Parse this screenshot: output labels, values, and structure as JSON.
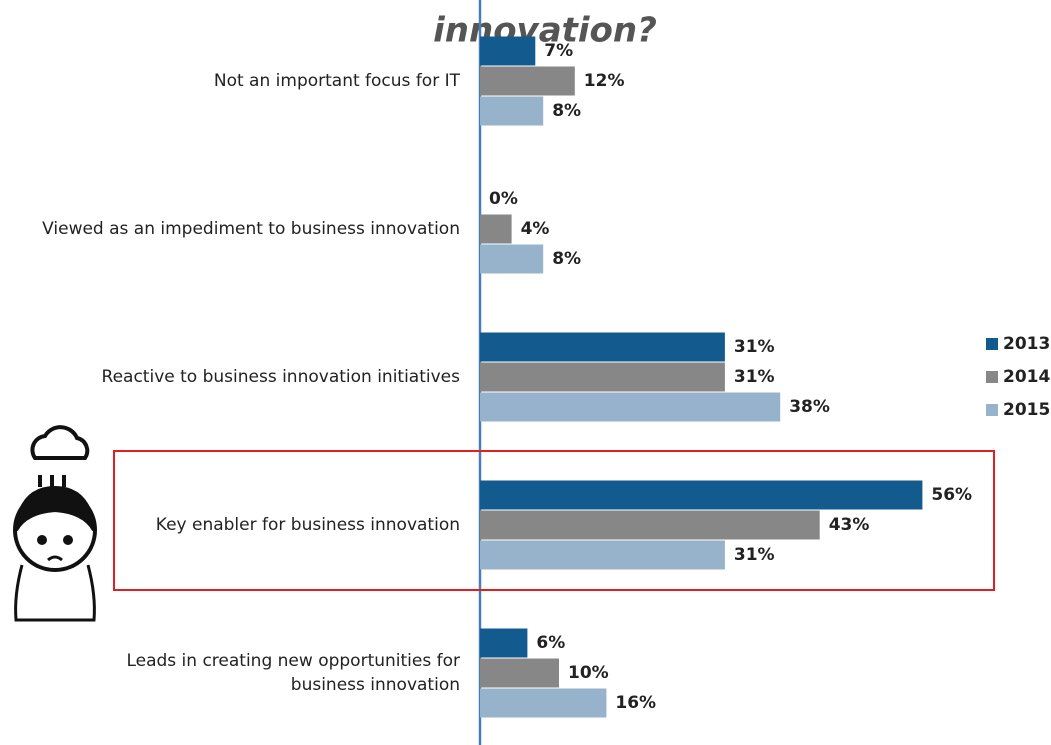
{
  "chart_data": {
    "type": "bar",
    "orientation": "horizontal",
    "title": "innovation?",
    "categories": [
      "Not an important focus for IT",
      "Viewed as an impediment to business innovation",
      "Reactive to business innovation initiatives",
      "Key enabler for business innovation",
      "Leads in creating new opportunities for business innovation"
    ],
    "series": [
      {
        "name": "2013",
        "color": "#135a8f",
        "values": [
          7,
          0,
          31,
          56,
          6
        ],
        "value_labels": [
          "7%",
          "0%",
          "31%",
          "56%",
          "6%"
        ]
      },
      {
        "name": "2014",
        "color": "#878787",
        "values": [
          12,
          4,
          31,
          43,
          10
        ],
        "value_labels": [
          "12%",
          "4%",
          "31%",
          "43%",
          "10%"
        ]
      },
      {
        "name": "2015",
        "color": "#97b3cc",
        "values": [
          8,
          8,
          38,
          31,
          16
        ],
        "value_labels": [
          "8%",
          "8%",
          "38%",
          "31%",
          "16%"
        ]
      }
    ],
    "xlim": [
      0,
      70
    ],
    "legend": "right"
  }
}
